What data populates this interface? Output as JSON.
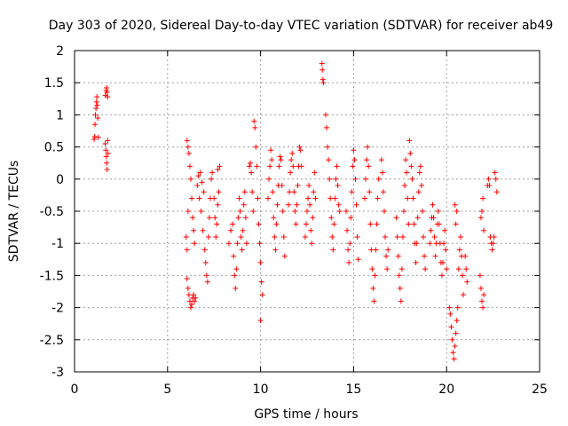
{
  "chart_data": {
    "type": "scatter",
    "title": "Day 303 of 2020, Sidereal Day-to-day VTEC variation (SDTVAR) for receiver ab49",
    "xlabel": "GPS time / hours",
    "ylabel": "SDTVAR / TECUs",
    "xlim": [
      0,
      25
    ],
    "ylim": [
      -3,
      2
    ],
    "xticks": [
      0,
      5,
      10,
      15,
      20,
      25
    ],
    "yticks": [
      -3,
      -2.5,
      -2,
      -1.5,
      -1,
      -0.5,
      0,
      0.5,
      1,
      1.5,
      2
    ],
    "xtick_labels": [
      "0",
      "5",
      "10",
      "15",
      "20",
      "25"
    ],
    "ytick_labels": [
      "-3",
      "-2.5",
      "-2",
      "-1.5",
      "-1",
      "-0.5",
      "0",
      "0.5",
      "1",
      "1.5",
      "2"
    ],
    "grid": true,
    "marker": "+",
    "series": [
      {
        "name": "SDTVAR",
        "color": "#ff0000",
        "points": [
          [
            1.05,
            0.62
          ],
          [
            1.08,
            0.66
          ],
          [
            1.1,
            0.85
          ],
          [
            1.12,
            1.0
          ],
          [
            1.15,
            1.1
          ],
          [
            1.18,
            1.2
          ],
          [
            1.2,
            1.28
          ],
          [
            1.22,
            1.15
          ],
          [
            1.25,
            0.95
          ],
          [
            1.28,
            0.65
          ],
          [
            1.65,
            1.3
          ],
          [
            1.7,
            1.38
          ],
          [
            1.72,
            1.42
          ],
          [
            1.75,
            1.35
          ],
          [
            1.78,
            1.28
          ],
          [
            1.65,
            0.55
          ],
          [
            1.68,
            0.45
          ],
          [
            1.7,
            0.35
          ],
          [
            1.72,
            0.25
          ],
          [
            1.75,
            0.15
          ],
          [
            1.78,
            0.6
          ],
          [
            1.8,
            0.4
          ],
          [
            6.05,
            -1.55
          ],
          [
            6.1,
            -1.7
          ],
          [
            6.15,
            -1.8
          ],
          [
            6.2,
            -1.9
          ],
          [
            6.25,
            -2.0
          ],
          [
            6.3,
            -1.95
          ],
          [
            6.35,
            -1.85
          ],
          [
            6.4,
            -1.8
          ],
          [
            6.45,
            -1.9
          ],
          [
            6.5,
            -1.85
          ],
          [
            6.05,
            0.6
          ],
          [
            6.1,
            0.5
          ],
          [
            6.15,
            0.4
          ],
          [
            6.2,
            0.2
          ],
          [
            6.25,
            0.0
          ],
          [
            6.3,
            -0.3
          ],
          [
            6.35,
            -0.6
          ],
          [
            6.4,
            -0.8
          ],
          [
            6.45,
            -1.0
          ],
          [
            6.0,
            -0.9
          ],
          [
            6.05,
            -1.1
          ],
          [
            6.1,
            -0.5
          ],
          [
            6.6,
            -0.1
          ],
          [
            6.7,
            -0.3
          ],
          [
            6.8,
            -0.5
          ],
          [
            6.9,
            -0.8
          ],
          [
            7.0,
            -1.1
          ],
          [
            7.05,
            -1.3
          ],
          [
            7.1,
            -1.5
          ],
          [
            7.15,
            -1.6
          ],
          [
            6.65,
            0.05
          ],
          [
            6.75,
            0.1
          ],
          [
            6.85,
            -0.05
          ],
          [
            6.95,
            -0.2
          ],
          [
            7.2,
            -0.9
          ],
          [
            7.25,
            -0.6
          ],
          [
            7.3,
            -0.3
          ],
          [
            7.35,
            0.0
          ],
          [
            7.4,
            0.1
          ],
          [
            7.5,
            -0.3
          ],
          [
            7.55,
            -0.6
          ],
          [
            7.6,
            -0.9
          ],
          [
            7.65,
            -0.7
          ],
          [
            7.7,
            -0.4
          ],
          [
            7.75,
            -0.2
          ],
          [
            7.8,
            0.2
          ],
          [
            7.7,
            0.15
          ],
          [
            8.3,
            -1.0
          ],
          [
            8.4,
            -0.8
          ],
          [
            8.5,
            -0.7
          ],
          [
            8.55,
            -1.2
          ],
          [
            8.6,
            -1.5
          ],
          [
            8.65,
            -1.7
          ],
          [
            8.7,
            -1.4
          ],
          [
            8.75,
            -1.0
          ],
          [
            8.8,
            -0.6
          ],
          [
            8.85,
            -0.3
          ],
          [
            8.9,
            -0.5
          ],
          [
            8.95,
            -0.9
          ],
          [
            9.0,
            -1.1
          ],
          [
            9.05,
            -0.8
          ],
          [
            9.1,
            -0.4
          ],
          [
            9.15,
            -0.2
          ],
          [
            9.2,
            -0.6
          ],
          [
            9.25,
            -1.0
          ],
          [
            9.4,
            0.2
          ],
          [
            9.45,
            0.25
          ],
          [
            9.5,
            0.1
          ],
          [
            9.55,
            -0.2
          ],
          [
            9.6,
            -0.5
          ],
          [
            9.65,
            0.9
          ],
          [
            9.7,
            0.8
          ],
          [
            9.75,
            0.5
          ],
          [
            9.8,
            0.2
          ],
          [
            9.85,
            -0.3
          ],
          [
            9.9,
            -0.7
          ],
          [
            9.95,
            -1.0
          ],
          [
            10.0,
            -1.3
          ],
          [
            10.05,
            -1.6
          ],
          [
            10.1,
            -1.8
          ],
          [
            10.0,
            -2.2
          ],
          [
            10.4,
            -0.3
          ],
          [
            10.45,
            0.0
          ],
          [
            10.5,
            0.2
          ],
          [
            10.55,
            0.45
          ],
          [
            10.6,
            0.3
          ],
          [
            10.65,
            -0.2
          ],
          [
            10.7,
            -0.6
          ],
          [
            10.75,
            -0.9
          ],
          [
            10.8,
            -1.1
          ],
          [
            10.85,
            -0.7
          ],
          [
            10.9,
            -0.4
          ],
          [
            10.95,
            -0.1
          ],
          [
            11.0,
            0.2
          ],
          [
            11.05,
            0.35
          ],
          [
            11.1,
            0.3
          ],
          [
            11.15,
            -0.1
          ],
          [
            11.2,
            -0.5
          ],
          [
            11.25,
            -0.9
          ],
          [
            11.3,
            -1.2
          ],
          [
            11.5,
            -0.4
          ],
          [
            11.55,
            -0.2
          ],
          [
            11.6,
            0.1
          ],
          [
            11.65,
            0.3
          ],
          [
            11.7,
            0.4
          ],
          [
            11.75,
            0.2
          ],
          [
            11.8,
            -0.2
          ],
          [
            11.85,
            -0.5
          ],
          [
            11.9,
            -0.7
          ],
          [
            11.95,
            -0.4
          ],
          [
            12.0,
            -0.1
          ],
          [
            12.05,
            0.2
          ],
          [
            12.1,
            0.5
          ],
          [
            12.15,
            0.45
          ],
          [
            12.2,
            0.2
          ],
          [
            12.4,
            -0.9
          ],
          [
            12.45,
            -0.7
          ],
          [
            12.5,
            -0.5
          ],
          [
            12.55,
            -0.3
          ],
          [
            12.6,
            -0.1
          ],
          [
            12.65,
            -0.4
          ],
          [
            12.7,
            -0.8
          ],
          [
            12.75,
            -1.0
          ],
          [
            12.8,
            -0.6
          ],
          [
            12.85,
            -0.2
          ],
          [
            12.9,
            0.1
          ],
          [
            12.95,
            -0.3
          ],
          [
            13.3,
            1.8
          ],
          [
            13.32,
            1.7
          ],
          [
            13.35,
            1.55
          ],
          [
            13.38,
            1.5
          ],
          [
            13.5,
            1.0
          ],
          [
            13.55,
            0.8
          ],
          [
            13.6,
            0.5
          ],
          [
            13.65,
            0.3
          ],
          [
            13.7,
            0.0
          ],
          [
            13.75,
            -0.3
          ],
          [
            13.8,
            -0.6
          ],
          [
            13.85,
            -0.9
          ],
          [
            13.9,
            -1.1
          ],
          [
            13.95,
            -0.7
          ],
          [
            14.0,
            -0.3
          ],
          [
            14.05,
            0.0
          ],
          [
            14.1,
            0.2
          ],
          [
            14.15,
            -0.1
          ],
          [
            14.2,
            -0.4
          ],
          [
            14.25,
            -0.5
          ],
          [
            14.6,
            -0.5
          ],
          [
            14.65,
            -0.8
          ],
          [
            14.7,
            -1.1
          ],
          [
            14.75,
            -1.3
          ],
          [
            14.8,
            -1.0
          ],
          [
            14.85,
            -0.6
          ],
          [
            14.9,
            -0.2
          ],
          [
            14.95,
            0.2
          ],
          [
            15.0,
            0.45
          ],
          [
            15.05,
            0.3
          ],
          [
            15.1,
            0.0
          ],
          [
            15.15,
            -0.4
          ],
          [
            15.2,
            -0.9
          ],
          [
            15.25,
            -1.25
          ],
          [
            15.6,
            -0.3
          ],
          [
            15.65,
            0.0
          ],
          [
            15.7,
            0.3
          ],
          [
            15.75,
            0.5
          ],
          [
            15.8,
            0.2
          ],
          [
            15.85,
            -0.2
          ],
          [
            15.9,
            -0.7
          ],
          [
            15.95,
            -1.1
          ],
          [
            16.0,
            -1.4
          ],
          [
            16.05,
            -1.7
          ],
          [
            16.1,
            -1.9
          ],
          [
            16.15,
            -1.5
          ],
          [
            16.2,
            -1.1
          ],
          [
            16.25,
            -0.7
          ],
          [
            16.3,
            -0.3
          ],
          [
            16.35,
            0.0
          ],
          [
            16.5,
            0.3
          ],
          [
            16.55,
            0.1
          ],
          [
            16.6,
            -0.2
          ],
          [
            16.65,
            -0.5
          ],
          [
            16.7,
            -0.9
          ],
          [
            16.75,
            -1.2
          ],
          [
            16.8,
            -1.4
          ],
          [
            16.85,
            -1.1
          ],
          [
            17.3,
            -0.6
          ],
          [
            17.35,
            -0.9
          ],
          [
            17.4,
            -1.2
          ],
          [
            17.45,
            -1.5
          ],
          [
            17.5,
            -1.7
          ],
          [
            17.55,
            -1.9
          ],
          [
            17.6,
            -1.4
          ],
          [
            17.65,
            -0.9
          ],
          [
            17.7,
            -0.5
          ],
          [
            17.75,
            -0.1
          ],
          [
            17.8,
            0.3
          ],
          [
            17.85,
            0.1
          ],
          [
            17.9,
            -0.3
          ],
          [
            17.95,
            -0.7
          ],
          [
            18.0,
            0.6
          ],
          [
            18.05,
            0.4
          ],
          [
            18.1,
            0.2
          ],
          [
            18.15,
            0.0
          ],
          [
            18.2,
            -0.3
          ],
          [
            18.25,
            -0.7
          ],
          [
            18.3,
            -1.0
          ],
          [
            18.35,
            -1.3
          ],
          [
            18.4,
            -1.0
          ],
          [
            18.45,
            -0.6
          ],
          [
            18.5,
            -0.2
          ],
          [
            18.55,
            0.1
          ],
          [
            18.6,
            0.2
          ],
          [
            18.65,
            -0.1
          ],
          [
            18.7,
            -0.5
          ],
          [
            18.75,
            -0.9
          ],
          [
            18.8,
            -1.2
          ],
          [
            18.85,
            -1.4
          ],
          [
            19.1,
            -1.0
          ],
          [
            19.15,
            -0.8
          ],
          [
            19.2,
            -0.6
          ],
          [
            19.25,
            -0.4
          ],
          [
            19.3,
            -0.6
          ],
          [
            19.35,
            -0.9
          ],
          [
            19.4,
            -1.2
          ],
          [
            19.45,
            -1.0
          ],
          [
            19.5,
            -0.7
          ],
          [
            19.55,
            -0.5
          ],
          [
            19.6,
            -0.7
          ],
          [
            19.65,
            -1.0
          ],
          [
            19.7,
            -1.3
          ],
          [
            19.75,
            -1.5
          ],
          [
            19.8,
            -1.3
          ],
          [
            19.85,
            -1.0
          ],
          [
            19.9,
            -0.8
          ],
          [
            19.95,
            -1.1
          ],
          [
            20.0,
            -1.4
          ],
          [
            20.15,
            -2.0
          ],
          [
            20.2,
            -2.1
          ],
          [
            20.25,
            -2.3
          ],
          [
            20.3,
            -2.5
          ],
          [
            20.35,
            -2.7
          ],
          [
            20.4,
            -2.8
          ],
          [
            20.45,
            -2.6
          ],
          [
            20.5,
            -2.4
          ],
          [
            20.55,
            -2.2
          ],
          [
            20.6,
            -2.0
          ],
          [
            20.65,
            -1.4
          ],
          [
            20.7,
            -1.1
          ],
          [
            20.75,
            -0.9
          ],
          [
            20.8,
            -1.2
          ],
          [
            20.85,
            -1.5
          ],
          [
            20.9,
            -1.8
          ],
          [
            20.5,
            -0.7
          ],
          [
            20.55,
            -0.5
          ],
          [
            20.45,
            -0.4
          ],
          [
            21.0,
            -1.2
          ],
          [
            21.05,
            -1.4
          ],
          [
            21.1,
            -1.6
          ],
          [
            21.8,
            -1.5
          ],
          [
            21.85,
            -1.7
          ],
          [
            21.9,
            -1.9
          ],
          [
            21.95,
            -2.0
          ],
          [
            22.0,
            -1.8
          ],
          [
            21.85,
            -0.6
          ],
          [
            21.9,
            -0.5
          ],
          [
            21.95,
            -0.3
          ],
          [
            22.0,
            -0.8
          ],
          [
            22.2,
            -0.1
          ],
          [
            22.25,
            0.0
          ],
          [
            22.3,
            -0.1
          ],
          [
            22.35,
            -0.9
          ],
          [
            22.4,
            -1.0
          ],
          [
            22.45,
            -1.1
          ],
          [
            22.5,
            -1.0
          ],
          [
            22.55,
            -0.9
          ],
          [
            22.6,
            0.1
          ],
          [
            22.65,
            0.0
          ],
          [
            22.7,
            -0.2
          ]
        ]
      }
    ]
  }
}
